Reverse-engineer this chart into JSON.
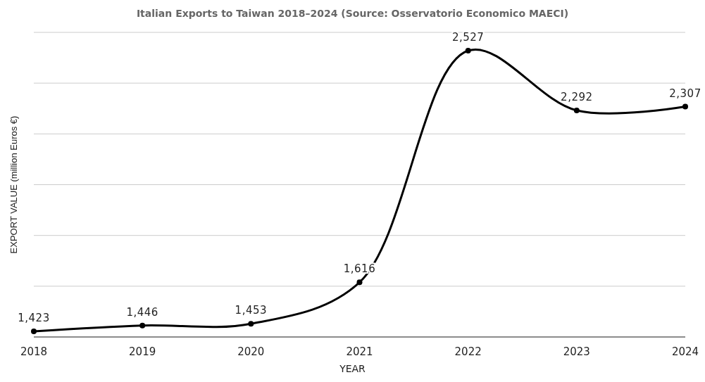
{
  "chart_data": {
    "type": "line",
    "title": "Italian Exports to Taiwan 2018–2024 (Source: Osservatorio Economico MAECI)",
    "xlabel": "YEAR",
    "ylabel": "EXPORT VALUE (million Euros €)",
    "x": [
      2018,
      2019,
      2020,
      2021,
      2022,
      2023,
      2024
    ],
    "series": [
      {
        "color": "#000000",
        "values": [
          1423,
          1446,
          1453,
          1616,
          2527,
          2292,
          2307
        ],
        "value_labels": [
          "1,423",
          "1,446",
          "1,453",
          "1,616",
          "2,527",
          "2,292",
          "2,307"
        ]
      }
    ],
    "xlim": [
      2018,
      2024
    ],
    "xticks": [
      2018,
      2019,
      2020,
      2021,
      2022,
      2023,
      2024
    ],
    "tick_labels": "x",
    "grid": "y",
    "marker": "circle",
    "line_style": "solid"
  }
}
